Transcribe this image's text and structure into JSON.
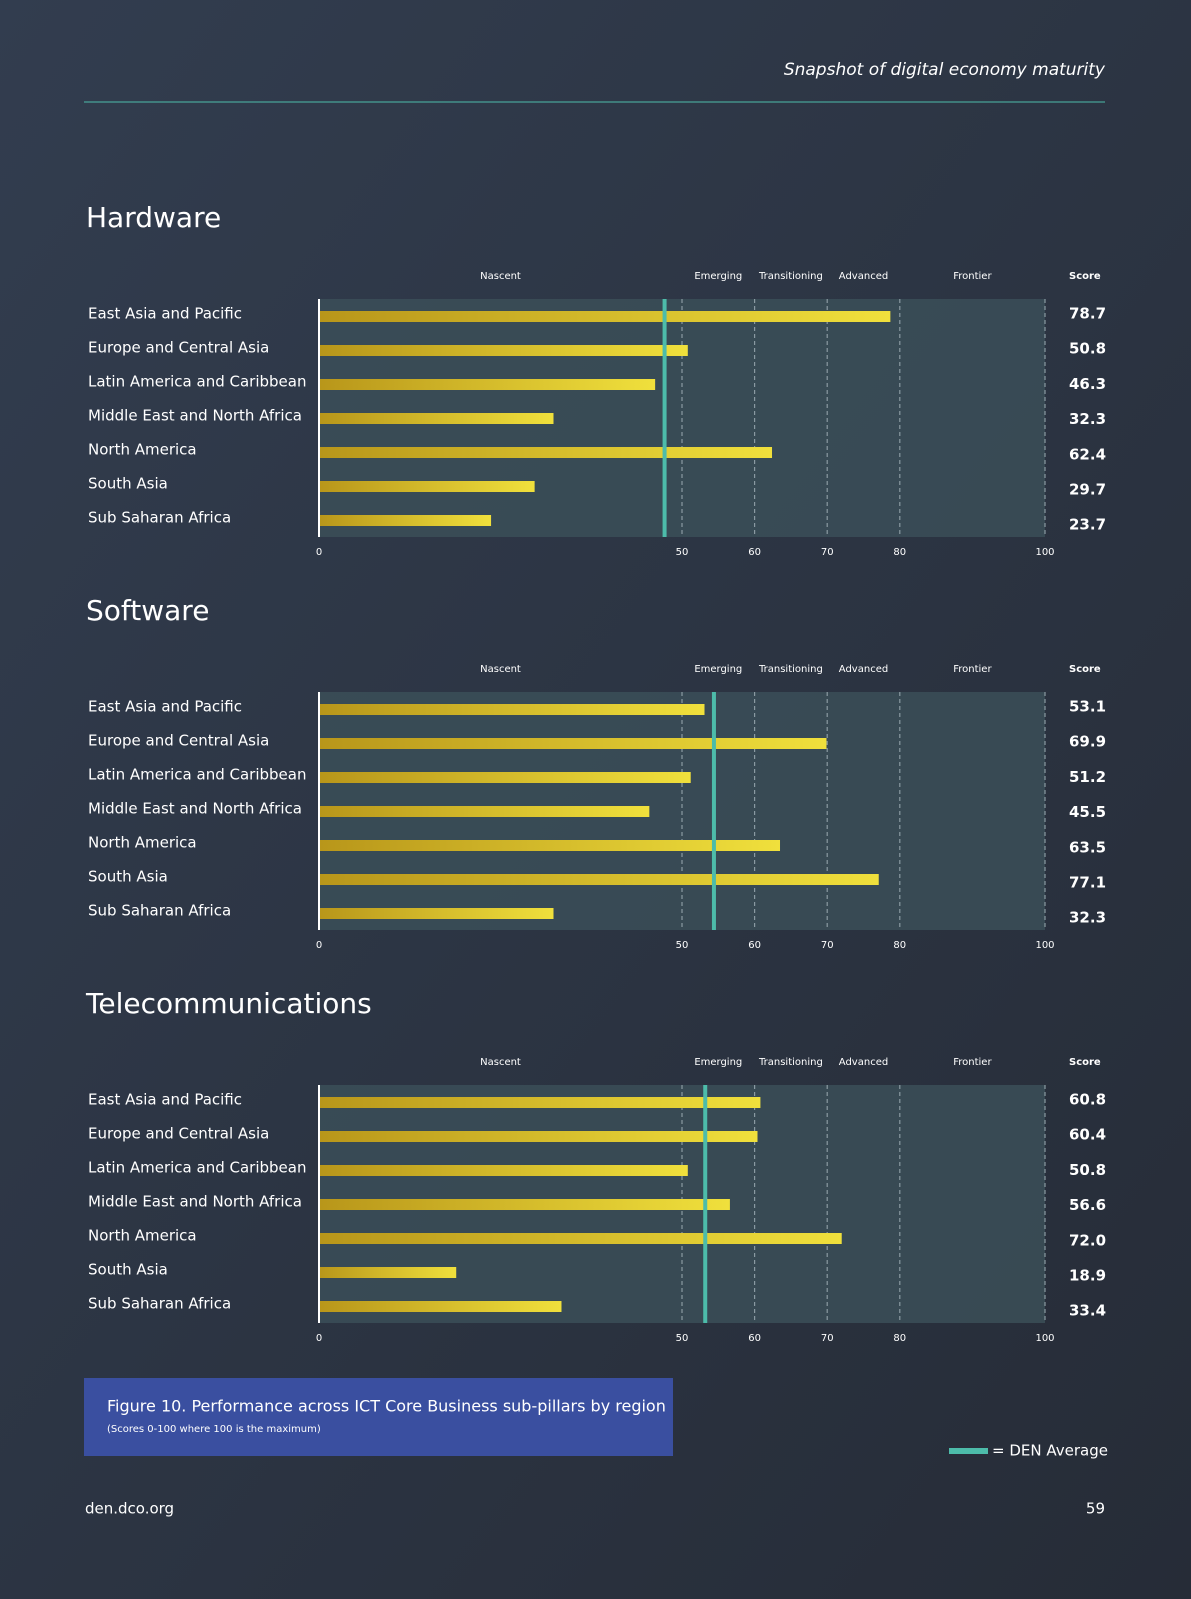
{
  "header": {
    "title": "Snapshot of digital economy maturity"
  },
  "chart_data": [
    {
      "type": "bar",
      "orientation": "horizontal",
      "title": "Hardware",
      "stages": [
        "Nascent",
        "Emerging",
        "Transitioning",
        "Advanced",
        "Frontier"
      ],
      "score_header": "Score",
      "categories": [
        "East Asia and Pacific",
        "Europe and Central Asia",
        "Latin America and Caribbean",
        "Middle East and North Africa",
        "North America",
        "South Asia",
        "Sub Saharan Africa"
      ],
      "values": [
        78.7,
        50.8,
        46.3,
        32.3,
        62.4,
        29.7,
        23.7
      ],
      "value_labels": [
        "78.7",
        "50.8",
        "46.3",
        "32.3",
        "62.4",
        "29.7",
        "23.7"
      ],
      "average": 47.6,
      "xlim": [
        0,
        100
      ],
      "xticks": [
        0,
        50,
        60,
        70,
        80,
        100
      ],
      "color": "#f0e03c",
      "grid": true
    },
    {
      "type": "bar",
      "orientation": "horizontal",
      "title": "Software",
      "stages": [
        "Nascent",
        "Emerging",
        "Transitioning",
        "Advanced",
        "Frontier"
      ],
      "score_header": "Score",
      "categories": [
        "East Asia and Pacific",
        "Europe and Central Asia",
        "Latin America and Caribbean",
        "Middle East and North Africa",
        "North America",
        "South Asia",
        "Sub Saharan Africa"
      ],
      "values": [
        53.1,
        69.9,
        51.2,
        45.5,
        63.5,
        77.1,
        32.3
      ],
      "value_labels": [
        "53.1",
        "69.9",
        "51.2",
        "45.5",
        "63.5",
        "77.1",
        "32.3"
      ],
      "average": 54.4,
      "xlim": [
        0,
        100
      ],
      "xticks": [
        0,
        50,
        60,
        70,
        80,
        100
      ],
      "color": "#f0e03c",
      "grid": true
    },
    {
      "type": "bar",
      "orientation": "horizontal",
      "title": "Telecommunications",
      "stages": [
        "Nascent",
        "Emerging",
        "Transitioning",
        "Advanced",
        "Frontier"
      ],
      "score_header": "Score",
      "categories": [
        "East Asia and Pacific",
        "Europe and Central Asia",
        "Latin America and Caribbean",
        "Middle East and North Africa",
        "North America",
        "South Asia",
        "Sub Saharan Africa"
      ],
      "values": [
        60.8,
        60.4,
        50.8,
        56.6,
        72.0,
        18.9,
        33.4
      ],
      "value_labels": [
        "60.8",
        "60.4",
        "50.8",
        "56.6",
        "72.0",
        "18.9",
        "33.4"
      ],
      "average": 53.2,
      "xlim": [
        0,
        100
      ],
      "xticks": [
        0,
        50,
        60,
        70,
        80,
        100
      ],
      "color": "#f0e03c",
      "grid": true
    }
  ],
  "legend": {
    "label": "= DEN Average",
    "color": "#4dbcaa"
  },
  "caption": {
    "title": "Figure 10. Performance across ICT Core Business sub-pillars by region",
    "subtitle": "(Scores 0-100 where 100 is the maximum)"
  },
  "footer": {
    "url": "den.dco.org",
    "page": "59"
  }
}
